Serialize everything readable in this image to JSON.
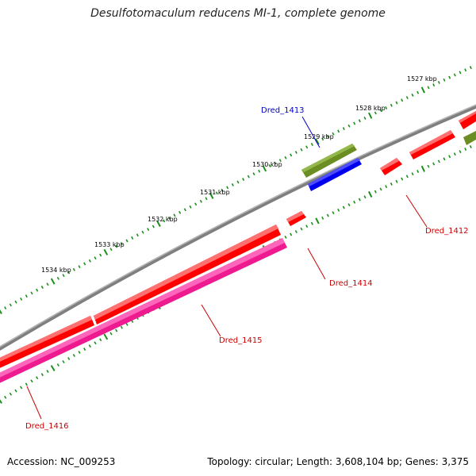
{
  "title": "Desulfotomaculum reducens MI-1, complete genome",
  "accession": "Accession: NC_009253",
  "topology": "Topology: circular; Length: 3,608,104 bp; Genes: 3,375",
  "colors": {
    "backbone": "#7f7f7f",
    "forward_cds": "#ff0000",
    "reverse_cds": "#ff0000",
    "highlight_magenta": "#ee1a90",
    "blue_gene": "#0000ff",
    "olive_gene": "#6b8e23",
    "tick": "#1a8f1a",
    "label_red": "#cc0000",
    "label_blue": "#0000cc"
  },
  "scale": {
    "labels": [
      "1527 kbp",
      "1528 kbp",
      "1529 kbp",
      "1530 kbp",
      "1531 kbp",
      "1532 kbp",
      "1533 kbp",
      "1534 kbp"
    ]
  },
  "genes": [
    {
      "id": "Dred_1412",
      "color": "red"
    },
    {
      "id": "Dred_1413",
      "color": "blue"
    },
    {
      "id": "Dred_1414",
      "color": "red"
    },
    {
      "id": "Dred_1415",
      "color": "magenta"
    },
    {
      "id": "Dred_1416",
      "color": "red"
    }
  ]
}
